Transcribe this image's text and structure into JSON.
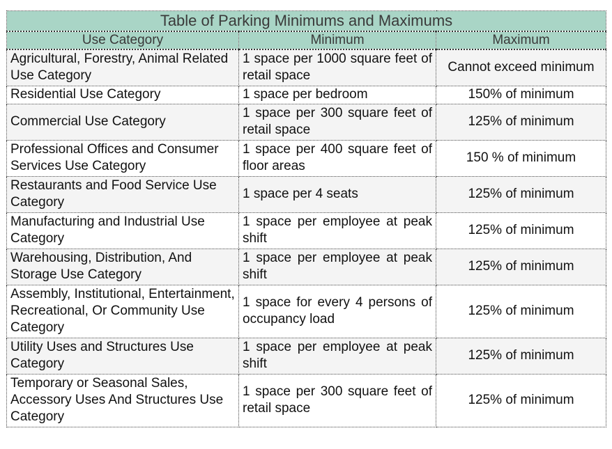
{
  "table": {
    "title": "Table of Parking Minimums and Maximums",
    "headers": [
      "Use Category",
      "Minimum",
      "Maximum"
    ],
    "rows": [
      {
        "category": "Agricultural, Forestry, Animal Related Use Category",
        "minimum": "1 space per 1000 square feet of retail space",
        "maximum": "Cannot exceed minimum"
      },
      {
        "category": "Residential Use Category",
        "minimum": "1 space per bedroom",
        "maximum": "150% of minimum"
      },
      {
        "category": "Commercial Use Category",
        "minimum": "1 space per 300 square feet of retail space",
        "maximum": "125% of minimum"
      },
      {
        "category": "Professional Offices and Consumer Services Use Category",
        "minimum": "1 space per 400 square feet of floor areas",
        "maximum": "150 % of minimum"
      },
      {
        "category": "Restaurants and Food Service Use Category",
        "minimum": "1 space per 4 seats",
        "maximum": "125% of minimum"
      },
      {
        "category": "Manufacturing and Industrial Use Category",
        "minimum": "1 space per employee at peak shift",
        "maximum": "125% of minimum"
      },
      {
        "category": "Warehousing, Distribution, And Storage Use Category",
        "minimum": "1 space per employee at peak shift",
        "maximum": "125% of minimum"
      },
      {
        "category": "Assembly, Institutional, Entertainment, Recreational, Or Community Use Category",
        "minimum": "1 space for every 4 persons of occupancy load",
        "maximum": "125% of minimum"
      },
      {
        "category": "Utility Uses and Structures Use Category",
        "minimum": "1 space per employee at peak shift",
        "maximum": "125% of minimum"
      },
      {
        "category": "Temporary or Seasonal Sales, Accessory Uses And Structures Use Category",
        "minimum": "1 space per 300 square feet of retail space",
        "maximum": "125% of minimum"
      }
    ]
  }
}
